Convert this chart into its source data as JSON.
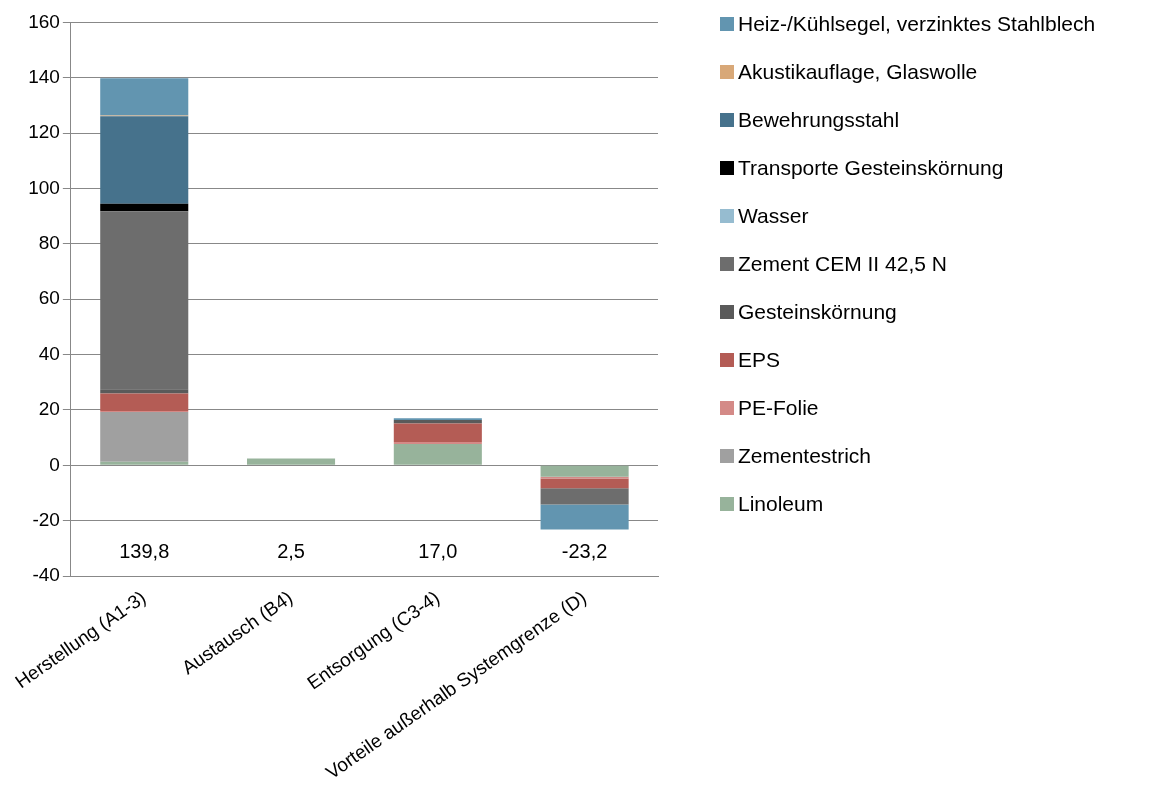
{
  "chart_data": {
    "type": "bar",
    "stacked": true,
    "categories": [
      "Herstellung (A1-3)",
      "Austausch (B4)",
      "Entsorgung (C3-4)",
      "Vorteile außerhalb Systemgrenze (D)"
    ],
    "series": [
      {
        "name": "Linoleum",
        "color": "#97b39b",
        "values": [
          1.3,
          2.5,
          7.7,
          -4.1
        ]
      },
      {
        "name": "Zementestrich",
        "color": "#a0a0a0",
        "values": [
          18.0,
          0,
          0,
          0
        ]
      },
      {
        "name": "PE-Folie",
        "color": "#d48a87",
        "values": [
          0.3,
          0,
          0.7,
          -0.7
        ]
      },
      {
        "name": "EPS",
        "color": "#b45c55",
        "values": [
          6.3,
          0,
          6.7,
          -3.5
        ]
      },
      {
        "name": "Gesteinskörnung",
        "color": "#5a5a5a",
        "values": [
          1.6,
          0,
          1.3,
          0
        ]
      },
      {
        "name": "Zement CEM II 42,5 N",
        "color": "#6d6d6d",
        "values": [
          64.3,
          0,
          0,
          -5.9
        ]
      },
      {
        "name": "Wasser",
        "color": "#96bcd0",
        "values": [
          0,
          0,
          0,
          0
        ]
      },
      {
        "name": "Transporte Gesteinskörnung",
        "color": "#000000",
        "values": [
          2.7,
          0,
          0,
          0
        ]
      },
      {
        "name": "Bewehrungsstahl",
        "color": "#46728c",
        "values": [
          31.6,
          0,
          0,
          0
        ]
      },
      {
        "name": "Akustikauflage, Glaswolle",
        "color": "#d8a878",
        "values": [
          0.3,
          0,
          0,
          0
        ]
      },
      {
        "name": "Heiz-/Kühlsegel, verzinktes Stahlblech",
        "color": "#6295b0",
        "values": [
          13.4,
          0,
          0.6,
          -9.0
        ]
      }
    ],
    "annotations": [
      "139,8",
      "2,5",
      "17,0",
      "-23,2"
    ],
    "ylim": [
      -40,
      160
    ],
    "yticks": [
      -40,
      -20,
      0,
      20,
      40,
      60,
      80,
      100,
      120,
      140,
      160
    ],
    "grid": "y",
    "legend": "right"
  }
}
